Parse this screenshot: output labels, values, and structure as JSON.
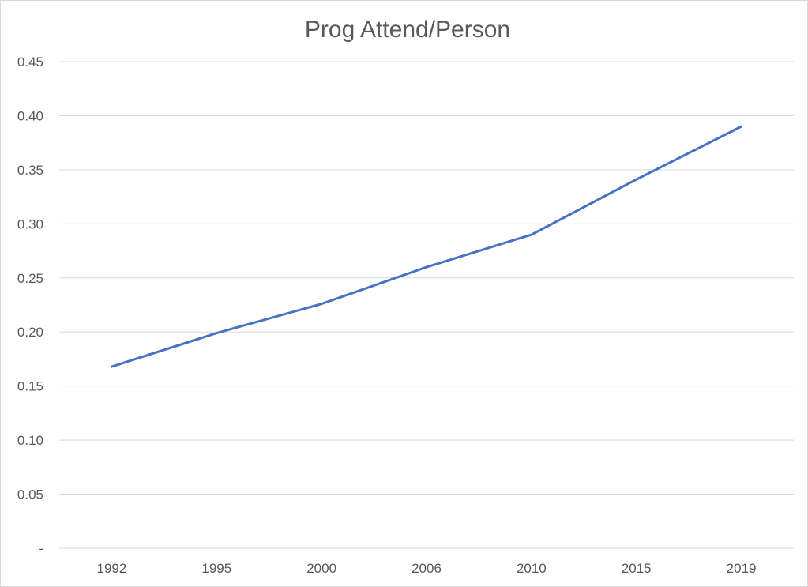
{
  "chart_data": {
    "type": "line",
    "title": "Prog Attend/Person",
    "xlabel": "",
    "ylabel": "",
    "categories": [
      "1992",
      "1995",
      "2000",
      "2006",
      "2010",
      "2015",
      "2019"
    ],
    "series": [
      {
        "values": [
          0.168,
          0.199,
          0.226,
          0.26,
          0.29,
          0.341,
          0.39
        ],
        "color": "#4472c4"
      }
    ],
    "ylim": [
      0,
      0.45
    ],
    "yticks": [
      0,
      0.05,
      0.1,
      0.15,
      0.2,
      0.25,
      0.3,
      0.35,
      0.4,
      0.45
    ],
    "ytick_labels": [
      "-",
      "0.05",
      "0.10",
      "0.15",
      "0.20",
      "0.25",
      "0.30",
      "0.35",
      "0.40",
      "0.45"
    ],
    "grid": true,
    "legend": "none"
  }
}
